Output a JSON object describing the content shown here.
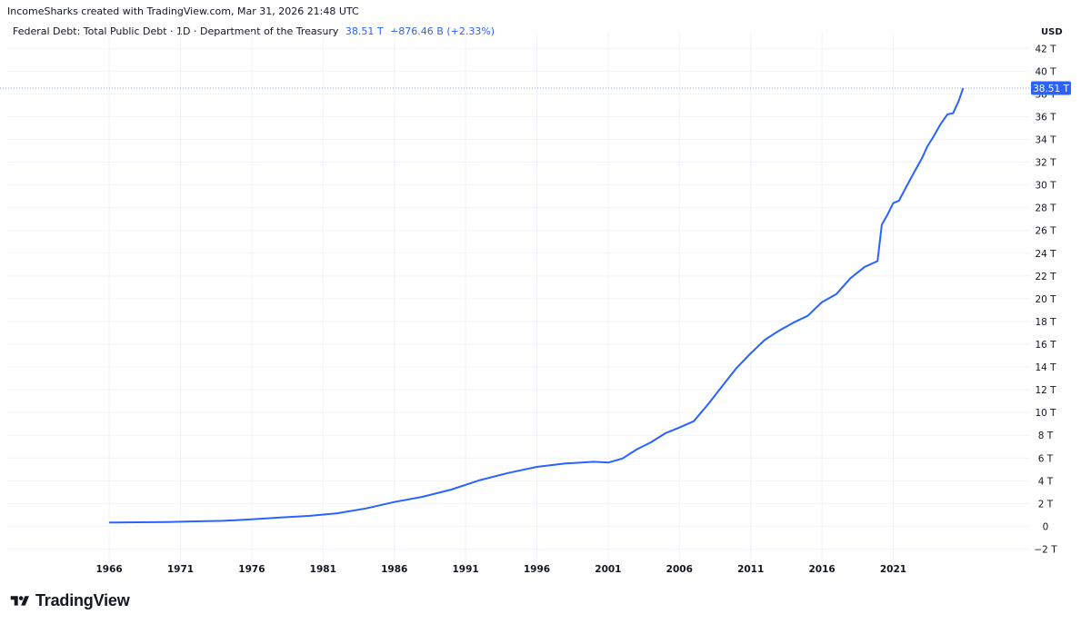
{
  "header": {
    "created_line": "IncomeSharks created with TradingView.com, Mar 31, 2026 21:48 UTC",
    "series_title": "Federal Debt: Total Public Debt · 1D · Department of the Treasury",
    "last_value": "38.51 T",
    "change": "+876.46 B (+2.33%)"
  },
  "axis": {
    "currency": "USD",
    "price_label": "38.51 T"
  },
  "brand": {
    "name": "TradingView"
  },
  "colors": {
    "line": "#2962ff",
    "grid": "#f0f3fa",
    "text": "#131722"
  },
  "chart_data": {
    "type": "line",
    "title": "Federal Debt: Total Public Debt · 1D · Department of the Treasury",
    "xlabel": "",
    "ylabel": "USD",
    "units": "trillions USD",
    "xlim": [
      1958.85,
      2030.6
    ],
    "ylim": [
      -2.6,
      42.5
    ],
    "x_ticks": [
      "1966",
      "1971",
      "1976",
      "1981",
      "1986",
      "1991",
      "1996",
      "2001",
      "2006",
      "2011",
      "2016",
      "2021"
    ],
    "y_ticks": [
      "−2 T",
      "0",
      "2 T",
      "4 T",
      "6 T",
      "8 T",
      "10 T",
      "12 T",
      "14 T",
      "16 T",
      "18 T",
      "20 T",
      "22 T",
      "24 T",
      "26 T",
      "28 T",
      "30 T",
      "32 T",
      "34 T",
      "36 T",
      "38 T",
      "40 T",
      "42 T"
    ],
    "y_tick_values": [
      -2,
      0,
      2,
      4,
      6,
      8,
      10,
      12,
      14,
      16,
      18,
      20,
      22,
      24,
      26,
      28,
      30,
      32,
      34,
      36,
      38,
      40,
      42
    ],
    "last_value": 38.51,
    "series": [
      {
        "name": "Federal Debt: Total Public Debt",
        "x": [
          1966,
          1968,
          1970,
          1972,
          1974,
          1976,
          1978,
          1980,
          1982,
          1984,
          1986,
          1988,
          1990,
          1992,
          1994,
          1996,
          1998,
          2000,
          2001,
          2002,
          2003,
          2004,
          2005,
          2006,
          2007,
          2008,
          2009,
          2010,
          2011,
          2012,
          2013,
          2014,
          2015,
          2016,
          2017,
          2018,
          2019,
          2019.9,
          2020.2,
          2020.6,
          2021,
          2021.4,
          2021.9,
          2022.5,
          2023,
          2023.4,
          2023.8,
          2024.3,
          2024.8,
          2025.2,
          2025.6,
          2025.9
        ],
        "y": [
          0.33,
          0.35,
          0.38,
          0.43,
          0.48,
          0.62,
          0.78,
          0.91,
          1.14,
          1.57,
          2.13,
          2.6,
          3.23,
          4.06,
          4.69,
          5.22,
          5.52,
          5.67,
          5.6,
          5.96,
          6.75,
          7.38,
          8.17,
          8.68,
          9.23,
          10.7,
          12.3,
          13.9,
          15.2,
          16.4,
          17.2,
          17.9,
          18.5,
          19.7,
          20.4,
          21.8,
          22.8,
          23.3,
          26.5,
          27.4,
          28.4,
          28.6,
          29.8,
          31.2,
          32.3,
          33.4,
          34.2,
          35.3,
          36.2,
          36.3,
          37.4,
          38.51
        ]
      }
    ]
  }
}
